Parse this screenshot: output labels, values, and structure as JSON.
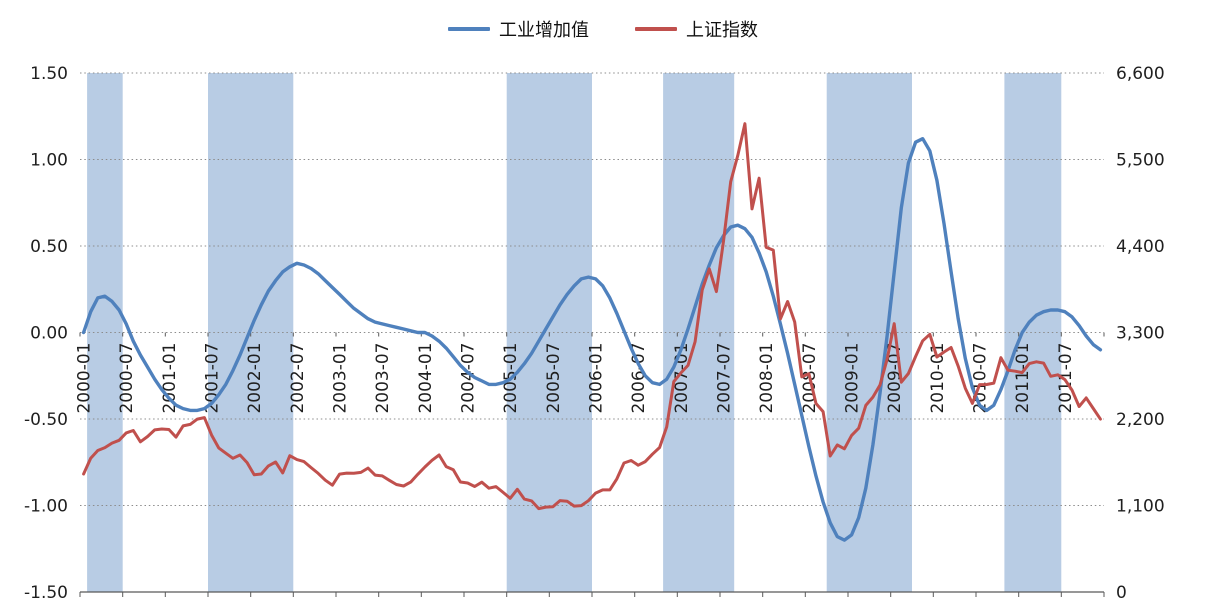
{
  "legend": {
    "items": [
      {
        "label": "工业增加值",
        "color": "#4F81BD"
      },
      {
        "label": "上证指数",
        "color": "#C0504D"
      }
    ]
  },
  "chart_data": {
    "type": "line",
    "title": "",
    "start_month": "2000-01",
    "frequency": "monthly",
    "grid": "dotted-horizontal",
    "legend_position": "top-center",
    "x_tick_labels": [
      "2000-01",
      "2000-07",
      "2001-01",
      "2001-07",
      "2002-01",
      "2002-07",
      "2003-01",
      "2003-07",
      "2004-01",
      "2004-07",
      "2005-01",
      "2005-07",
      "2006-01",
      "2006-07",
      "2007-01",
      "2007-07",
      "2008-01",
      "2008-07",
      "2009-01",
      "2009-07",
      "2010-01",
      "2010-07",
      "2011-01",
      "2011-07"
    ],
    "left_axis": {
      "min": -1.5,
      "max": 1.5,
      "ticks": [
        "1.50",
        "1.00",
        "0.50",
        "0.00",
        "-0.50",
        "-1.00",
        "-1.50"
      ]
    },
    "right_axis": {
      "min": 0,
      "max": 6600,
      "ticks": [
        "6,600",
        "5,500",
        "4,400",
        "3,300",
        "2,200",
        "1,100",
        "0"
      ]
    },
    "shaded_bands": {
      "color": "#B8CCE4",
      "ranges": [
        {
          "start": "2000-02",
          "end": "2000-06"
        },
        {
          "start": "2001-07",
          "end": "2002-06"
        },
        {
          "start": "2005-01",
          "end": "2005-12"
        },
        {
          "start": "2006-11",
          "end": "2007-08"
        },
        {
          "start": "2008-10",
          "end": "2009-09"
        },
        {
          "start": "2010-11",
          "end": "2011-06"
        }
      ]
    },
    "series": [
      {
        "name": "工业增加值",
        "axis": "left",
        "color": "#4F81BD",
        "values": [
          0.0,
          0.12,
          0.2,
          0.21,
          0.18,
          0.13,
          0.05,
          -0.05,
          -0.13,
          -0.2,
          -0.27,
          -0.33,
          -0.38,
          -0.42,
          -0.44,
          -0.45,
          -0.45,
          -0.44,
          -0.41,
          -0.36,
          -0.3,
          -0.22,
          -0.13,
          -0.03,
          0.07,
          0.16,
          0.24,
          0.3,
          0.35,
          0.38,
          0.4,
          0.39,
          0.37,
          0.34,
          0.3,
          0.26,
          0.22,
          0.18,
          0.14,
          0.11,
          0.08,
          0.06,
          0.05,
          0.04,
          0.03,
          0.02,
          0.01,
          0.0,
          0.0,
          -0.02,
          -0.05,
          -0.09,
          -0.14,
          -0.19,
          -0.23,
          -0.26,
          -0.28,
          -0.3,
          -0.3,
          -0.29,
          -0.27,
          -0.23,
          -0.18,
          -0.12,
          -0.05,
          0.02,
          0.09,
          0.16,
          0.22,
          0.27,
          0.31,
          0.32,
          0.31,
          0.27,
          0.2,
          0.11,
          0.01,
          -0.09,
          -0.18,
          -0.25,
          -0.29,
          -0.3,
          -0.27,
          -0.2,
          -0.1,
          0.02,
          0.15,
          0.28,
          0.39,
          0.49,
          0.56,
          0.61,
          0.62,
          0.6,
          0.55,
          0.46,
          0.35,
          0.21,
          0.05,
          -0.12,
          -0.3,
          -0.48,
          -0.66,
          -0.83,
          -0.98,
          -1.1,
          -1.18,
          -1.2,
          -1.17,
          -1.07,
          -0.9,
          -0.65,
          -0.35,
          -0.02,
          0.35,
          0.72,
          0.98,
          1.1,
          1.12,
          1.05,
          0.88,
          0.63,
          0.35,
          0.08,
          -0.15,
          -0.32,
          -0.42,
          -0.45,
          -0.42,
          -0.33,
          -0.22,
          -0.1,
          0.0,
          0.06,
          0.1,
          0.12,
          0.13,
          0.13,
          0.12,
          0.09,
          0.04,
          -0.02,
          -0.07,
          -0.1
        ]
      },
      {
        "name": "上证指数",
        "axis": "right",
        "color": "#C0504D",
        "values": [
          1500,
          1700,
          1800,
          1836,
          1894,
          1929,
          2023,
          2054,
          1910,
          1977,
          2062,
          2073,
          2066,
          1970,
          2112,
          2131,
          2199,
          2218,
          1995,
          1833,
          1765,
          1700,
          1742,
          1646,
          1491,
          1500,
          1603,
          1653,
          1515,
          1733,
          1684,
          1658,
          1582,
          1508,
          1422,
          1358,
          1499,
          1512,
          1510,
          1521,
          1576,
          1486,
          1476,
          1421,
          1367,
          1348,
          1397,
          1497,
          1590,
          1675,
          1742,
          1595,
          1555,
          1399,
          1386,
          1342,
          1396,
          1320,
          1340,
          1266,
          1191,
          1306,
          1181,
          1159,
          1060,
          1080,
          1083,
          1162,
          1155,
          1092,
          1099,
          1161,
          1258,
          1299,
          1298,
          1440,
          1641,
          1672,
          1612,
          1658,
          1752,
          1837,
          2099,
          2675,
          2786,
          2881,
          3183,
          3841,
          4109,
          3820,
          4471,
          5218,
          5552,
          5955,
          4872,
          5262,
          4383,
          4348,
          3473,
          3694,
          3433,
          2736,
          2776,
          2397,
          2294,
          1729,
          1871,
          1821,
          1991,
          2083,
          2373,
          2478,
          2633,
          2959,
          3412,
          2668,
          2779,
          2995,
          3195,
          3277,
          2989,
          3052,
          3109,
          2871,
          2592,
          2398,
          2638,
          2639,
          2656,
          2979,
          2821,
          2808,
          2790,
          2905,
          2928,
          2911,
          2743,
          2762,
          2701,
          2567,
          2359,
          2468,
          2333,
          2199
        ]
      }
    ]
  },
  "colors": {
    "band": "#B8CCE4",
    "grid": "#8c8c8c",
    "axis": "#595959",
    "text": "#1f1f1f"
  }
}
